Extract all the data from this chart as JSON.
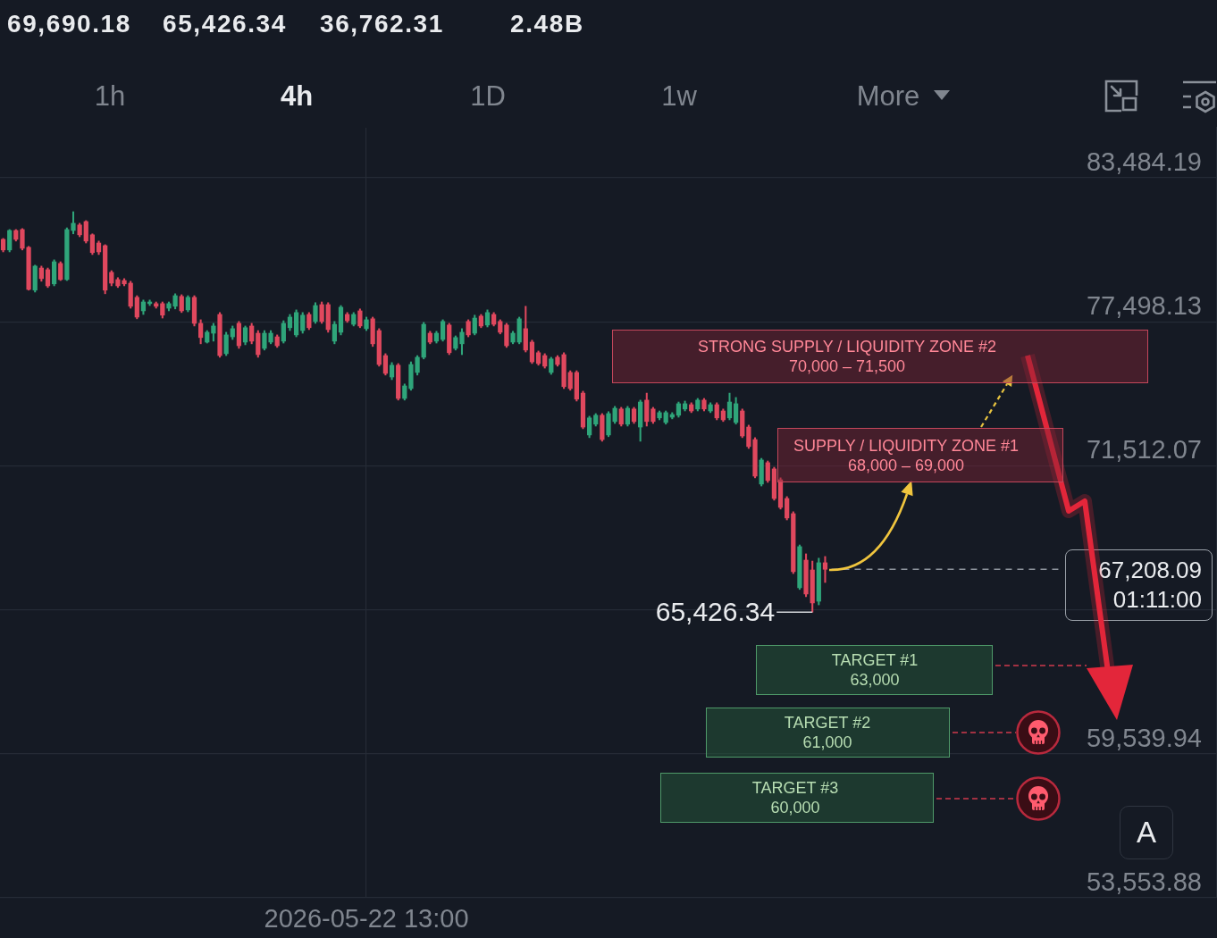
{
  "chart_data": {
    "type": "candlestick",
    "categories": [
      null,
      null,
      null,
      null,
      null,
      null,
      null,
      null,
      null,
      null,
      null,
      null,
      null,
      null,
      null,
      null,
      null,
      null,
      null,
      null,
      null,
      null,
      null,
      null,
      null,
      null,
      null,
      null,
      null,
      null,
      null,
      null,
      null,
      null,
      null,
      null,
      null,
      null,
      null,
      null,
      null,
      null,
      null,
      null,
      null,
      null,
      null,
      null,
      null,
      null,
      null,
      null,
      null,
      null,
      null,
      null,
      null,
      "2026-05-22 13:00",
      null,
      null,
      null,
      null,
      null,
      null,
      null,
      null,
      null,
      null,
      null,
      null,
      null,
      null,
      null,
      null,
      null,
      null,
      null,
      null,
      null,
      null,
      null,
      null,
      null,
      null,
      null,
      null,
      null,
      null,
      null,
      null,
      null,
      null,
      null,
      null,
      null,
      null,
      null,
      null,
      null,
      null,
      null,
      null,
      null,
      null,
      null,
      null,
      null,
      null,
      null,
      null,
      null,
      null,
      null,
      null,
      null,
      null,
      null,
      null,
      null,
      null,
      null,
      null,
      null,
      null,
      null,
      null,
      null,
      null,
      null,
      null,
      null,
      null,
      null,
      null,
      null,
      null,
      null,
      null,
      null,
      null,
      null,
      null,
      null,
      null,
      null,
      null,
      null,
      null,
      null,
      null,
      null,
      null,
      null,
      null,
      null,
      null,
      null,
      null,
      null,
      null,
      null,
      null,
      null,
      null,
      null,
      null,
      null,
      null,
      null,
      null,
      null,
      null,
      null,
      null,
      null,
      null,
      null,
      null,
      null,
      null,
      null,
      null,
      null,
      null,
      null,
      null,
      null,
      null,
      null,
      null,
      null
    ],
    "ohlc": [
      [
        80920,
        80960,
        80400,
        80480
      ],
      [
        80480,
        81330,
        80400,
        81290
      ],
      [
        81290,
        81330,
        80850,
        80920
      ],
      [
        81330,
        81370,
        80480,
        80550
      ],
      [
        80590,
        80630,
        78810,
        78840
      ],
      [
        78810,
        79850,
        78730,
        79810
      ],
      [
        79730,
        79810,
        79180,
        79290
      ],
      [
        79660,
        79730,
        78920,
        78990
      ],
      [
        79070,
        80070,
        78990,
        79990
      ],
      [
        79920,
        79990,
        79210,
        79250
      ],
      [
        79250,
        81400,
        79210,
        81330
      ],
      [
        81290,
        82070,
        81150,
        81590
      ],
      [
        81520,
        81590,
        81030,
        81110
      ],
      [
        81660,
        81700,
        80770,
        80850
      ],
      [
        81110,
        81150,
        80290,
        80370
      ],
      [
        80770,
        80850,
        80290,
        80400
      ],
      [
        80660,
        80700,
        78660,
        78810
      ],
      [
        79550,
        79620,
        78990,
        79100
      ],
      [
        79250,
        79330,
        78920,
        78990
      ],
      [
        79210,
        79290,
        78990,
        79070
      ],
      [
        79100,
        79180,
        78060,
        78140
      ],
      [
        78510,
        78580,
        77620,
        77690
      ],
      [
        77950,
        78400,
        77800,
        78320
      ],
      [
        78250,
        78400,
        78170,
        78320
      ],
      [
        78250,
        78320,
        78060,
        78140
      ],
      [
        78250,
        78320,
        77650,
        77770
      ],
      [
        78060,
        78320,
        77950,
        78250
      ],
      [
        78140,
        78660,
        78030,
        78580
      ],
      [
        78550,
        78620,
        77880,
        77950
      ],
      [
        77990,
        78580,
        77910,
        78510
      ],
      [
        78510,
        78580,
        77320,
        77430
      ],
      [
        77430,
        77580,
        76580,
        76840
      ],
      [
        76650,
        77130,
        76610,
        77060
      ],
      [
        77020,
        77430,
        76690,
        77320
      ],
      [
        77800,
        77880,
        76020,
        76090
      ],
      [
        76170,
        77060,
        76090,
        76950
      ],
      [
        76870,
        77320,
        76760,
        77210
      ],
      [
        77430,
        77510,
        76390,
        76500
      ],
      [
        76650,
        77320,
        76540,
        77250
      ],
      [
        77320,
        77430,
        76580,
        76690
      ],
      [
        77020,
        77130,
        76020,
        76130
      ],
      [
        76390,
        77130,
        76320,
        77020
      ],
      [
        76650,
        77130,
        76580,
        77020
      ],
      [
        76870,
        76950,
        76430,
        76500
      ],
      [
        76690,
        77540,
        76610,
        77430
      ],
      [
        77250,
        77800,
        77130,
        77690
      ],
      [
        76950,
        77990,
        76870,
        77880
      ],
      [
        77130,
        77880,
        77020,
        77770
      ],
      [
        77800,
        77880,
        77170,
        77250
      ],
      [
        77510,
        78290,
        77430,
        78170
      ],
      [
        78210,
        78320,
        77430,
        77510
      ],
      [
        78210,
        78290,
        77060,
        77170
      ],
      [
        76690,
        77510,
        76580,
        77390
      ],
      [
        77060,
        78170,
        76950,
        78100
      ],
      [
        77800,
        77880,
        77470,
        77540
      ],
      [
        77390,
        77880,
        77320,
        77800
      ],
      [
        77950,
        78030,
        77250,
        77320
      ],
      [
        77210,
        77690,
        77130,
        77580
      ],
      [
        77620,
        77690,
        76470,
        76580
      ],
      [
        77130,
        77210,
        75650,
        75720
      ],
      [
        76090,
        76170,
        75280,
        75350
      ],
      [
        75200,
        75800,
        75090,
        75690
      ],
      [
        75690,
        75760,
        74240,
        74310
      ],
      [
        74310,
        74910,
        74240,
        74830
      ],
      [
        74720,
        75830,
        74650,
        75720
      ],
      [
        75390,
        76090,
        75280,
        76020
      ],
      [
        76020,
        77470,
        75950,
        77390
      ],
      [
        77020,
        77100,
        76580,
        76650
      ],
      [
        76690,
        77100,
        76610,
        77020
      ],
      [
        76760,
        77580,
        76690,
        77510
      ],
      [
        77360,
        77430,
        76130,
        76210
      ],
      [
        76390,
        76910,
        76320,
        76840
      ],
      [
        76580,
        77210,
        76130,
        77060
      ],
      [
        77510,
        77580,
        76870,
        76950
      ],
      [
        77020,
        77770,
        76950,
        77650
      ],
      [
        77730,
        77800,
        77250,
        77320
      ],
      [
        77360,
        77990,
        77280,
        77880
      ],
      [
        77800,
        77880,
        77320,
        77390
      ],
      [
        77510,
        77580,
        76990,
        77060
      ],
      [
        77360,
        77430,
        76430,
        76500
      ],
      [
        76650,
        77100,
        76580,
        77020
      ],
      [
        76650,
        77690,
        76580,
        77620
      ],
      [
        77210,
        78140,
        76240,
        76320
      ],
      [
        76650,
        76730,
        75760,
        75830
      ],
      [
        76210,
        76280,
        75690,
        75760
      ],
      [
        76090,
        76170,
        75570,
        75650
      ],
      [
        75390,
        76020,
        75310,
        75950
      ],
      [
        76020,
        76090,
        75650,
        75720
      ],
      [
        76130,
        76210,
        74720,
        74800
      ],
      [
        75390,
        75460,
        74650,
        74720
      ],
      [
        75390,
        75460,
        74200,
        74280
      ],
      [
        74530,
        74610,
        73050,
        73120
      ],
      [
        72790,
        73570,
        72680,
        73500
      ],
      [
        73240,
        73680,
        73160,
        73610
      ],
      [
        73610,
        73680,
        72530,
        72600
      ],
      [
        72790,
        73760,
        72720,
        73680
      ],
      [
        73350,
        73980,
        73270,
        73900
      ],
      [
        73870,
        73940,
        73160,
        73240
      ],
      [
        73240,
        73980,
        73160,
        73900
      ],
      [
        73870,
        73940,
        73270,
        73350
      ],
      [
        73120,
        74240,
        72530,
        74160
      ],
      [
        74240,
        74530,
        73160,
        73350
      ],
      [
        73870,
        73940,
        73270,
        73350
      ],
      [
        73500,
        73790,
        73420,
        73720
      ],
      [
        73310,
        73790,
        73240,
        73720
      ],
      [
        73530,
        73720,
        73460,
        73640
      ],
      [
        73610,
        74160,
        73530,
        74090
      ],
      [
        73870,
        74200,
        73790,
        74090
      ],
      [
        74050,
        74130,
        73720,
        73790
      ],
      [
        73870,
        74310,
        73790,
        74240
      ],
      [
        74240,
        74310,
        73790,
        73870
      ],
      [
        73790,
        74130,
        73720,
        74050
      ],
      [
        74050,
        74130,
        73420,
        73500
      ],
      [
        73790,
        73870,
        73350,
        73420
      ],
      [
        73500,
        74530,
        73420,
        74160
      ],
      [
        73310,
        74350,
        73240,
        74090
      ],
      [
        73790,
        73870,
        72680,
        72750
      ],
      [
        73120,
        73200,
        72230,
        72310
      ],
      [
        72600,
        72680,
        71010,
        71080
      ],
      [
        70750,
        71820,
        70670,
        71750
      ],
      [
        71640,
        71710,
        70820,
        70900
      ],
      [
        71380,
        71450,
        70080,
        70150
      ],
      [
        70930,
        71010,
        69710,
        69780
      ],
      [
        70150,
        70230,
        69260,
        69340
      ],
      [
        69520,
        69600,
        67030,
        67110
      ],
      [
        66440,
        68220,
        66370,
        68150
      ],
      [
        67590,
        67850,
        66070,
        66180
      ],
      [
        67180,
        67550,
        65426.34,
        65810
      ],
      [
        65880,
        67670,
        65730,
        67480
      ],
      [
        67480,
        67740,
        66660,
        67208.09
      ],
      null,
      null,
      null,
      null,
      null,
      null,
      null,
      null,
      null,
      null,
      null,
      null,
      null,
      null,
      null,
      null,
      null,
      null,
      null,
      null,
      null,
      null,
      null,
      null,
      null,
      null,
      null,
      null,
      null,
      null,
      null,
      null,
      null,
      null,
      null,
      null,
      null,
      null,
      null,
      null,
      null,
      null,
      null,
      null,
      null,
      null,
      null,
      null,
      null,
      null,
      null,
      null,
      null,
      null,
      null,
      null,
      null,
      null,
      null,
      null,
      null
    ],
    "colors": [
      "#e0485e",
      "#2fa57a",
      "#e0485e",
      "#e0485e",
      "#e0485e",
      "#2fa57a",
      "#e0485e",
      "#e0485e",
      "#2fa57a",
      "#e0485e",
      "#2fa57a",
      "#2fa57a",
      "#e0485e",
      "#e0485e",
      "#e0485e",
      "#e0485e",
      "#e0485e",
      "#e0485e",
      "#e0485e",
      "#e0485e",
      "#e0485e",
      "#e0485e",
      "#2fa57a",
      "#2fa57a",
      "#e0485e",
      "#e0485e",
      "#2fa57a",
      "#2fa57a",
      "#e0485e",
      "#2fa57a",
      "#e0485e",
      "#e0485e",
      "#2fa57a",
      "#2fa57a",
      "#e0485e",
      "#2fa57a",
      "#2fa57a",
      "#e0485e",
      "#2fa57a",
      "#e0485e",
      "#e0485e",
      "#2fa57a",
      "#2fa57a",
      "#e0485e",
      "#2fa57a",
      "#2fa57a",
      "#2fa57a",
      "#2fa57a",
      "#e0485e",
      "#2fa57a",
      "#e0485e",
      "#e0485e",
      "#2fa57a",
      "#2fa57a",
      "#e0485e",
      "#2fa57a",
      "#e0485e",
      "#2fa57a",
      "#e0485e",
      "#e0485e",
      "#e0485e",
      "#2fa57a",
      "#e0485e",
      "#2fa57a",
      "#2fa57a",
      "#2fa57a",
      "#2fa57a",
      "#e0485e",
      "#2fa57a",
      "#2fa57a",
      "#e0485e",
      "#2fa57a",
      "#2fa57a",
      "#e0485e",
      "#2fa57a",
      "#e0485e",
      "#2fa57a",
      "#e0485e",
      "#e0485e",
      "#e0485e",
      "#2fa57a",
      "#2fa57a",
      "#e0485e",
      "#e0485e",
      "#e0485e",
      "#e0485e",
      "#2fa57a",
      "#e0485e",
      "#e0485e",
      "#e0485e",
      "#e0485e",
      "#e0485e",
      "#2fa57a",
      "#2fa57a",
      "#e0485e",
      "#2fa57a",
      "#2fa57a",
      "#e0485e",
      "#2fa57a",
      "#e0485e",
      "#2fa57a",
      "#e0485e",
      "#e0485e",
      "#2fa57a",
      "#2fa57a",
      "#2fa57a",
      "#2fa57a",
      "#2fa57a",
      "#e0485e",
      "#2fa57a",
      "#e0485e",
      "#2fa57a",
      "#e0485e",
      "#e0485e",
      "#2fa57a",
      "#2fa57a",
      "#e0485e",
      "#e0485e",
      "#e0485e",
      "#2fa57a",
      "#e0485e",
      "#e0485e",
      "#e0485e",
      "#e0485e",
      "#e0485e",
      "#2fa57a",
      "#e0485e",
      "#e0485e",
      "#2fa57a",
      "#e0485e",
      null,
      null,
      null,
      null,
      null,
      null,
      null,
      null,
      null,
      null,
      null,
      null,
      null,
      null,
      null,
      null,
      null,
      null,
      null,
      null,
      null,
      null,
      null,
      null,
      null,
      null,
      null,
      null,
      null,
      null,
      null,
      null,
      null,
      null,
      null,
      null,
      null,
      null,
      null,
      null,
      null,
      null,
      null,
      null,
      null,
      null,
      null,
      null,
      null,
      null,
      null,
      null,
      null,
      null,
      null,
      null,
      null,
      null,
      null,
      null,
      null
    ],
    "ylim": [
      53553.88,
      85560
    ],
    "yticks": [
      {
        "value": 83484.19,
        "label": "83,484.19"
      },
      {
        "value": 77498.13,
        "label": "77,498.13"
      },
      {
        "value": 71512.07,
        "label": "71,512.07"
      },
      {
        "value": 65526.01,
        "label": null
      },
      {
        "value": 59539.94,
        "label": "59,539.94"
      },
      {
        "value": 53553.88,
        "label": "53,553.88"
      }
    ],
    "grid": true,
    "ref_lines": [
      {
        "axis": "y",
        "value": 67208.09,
        "label": "67,208.09",
        "color": "#8d939c",
        "line_style": "dashed"
      }
    ],
    "annotations": [
      "69,690.18",
      "65,426.34",
      "36,762.31",
      "2.48B",
      "1h",
      "4h",
      "1D",
      "1w",
      "More",
      "STRONG SUPPLY / LIQUIDITY ZONE #2\n70,000 – 71,500",
      "SUPPLY / LIQUIDITY ZONE #1\n68,000 – 69,000",
      "TARGET #1\n63,000",
      "TARGET #2\n61,000",
      "TARGET #3\n60,000",
      "65,426.34",
      "01:11:00",
      "A"
    ]
  }
}
